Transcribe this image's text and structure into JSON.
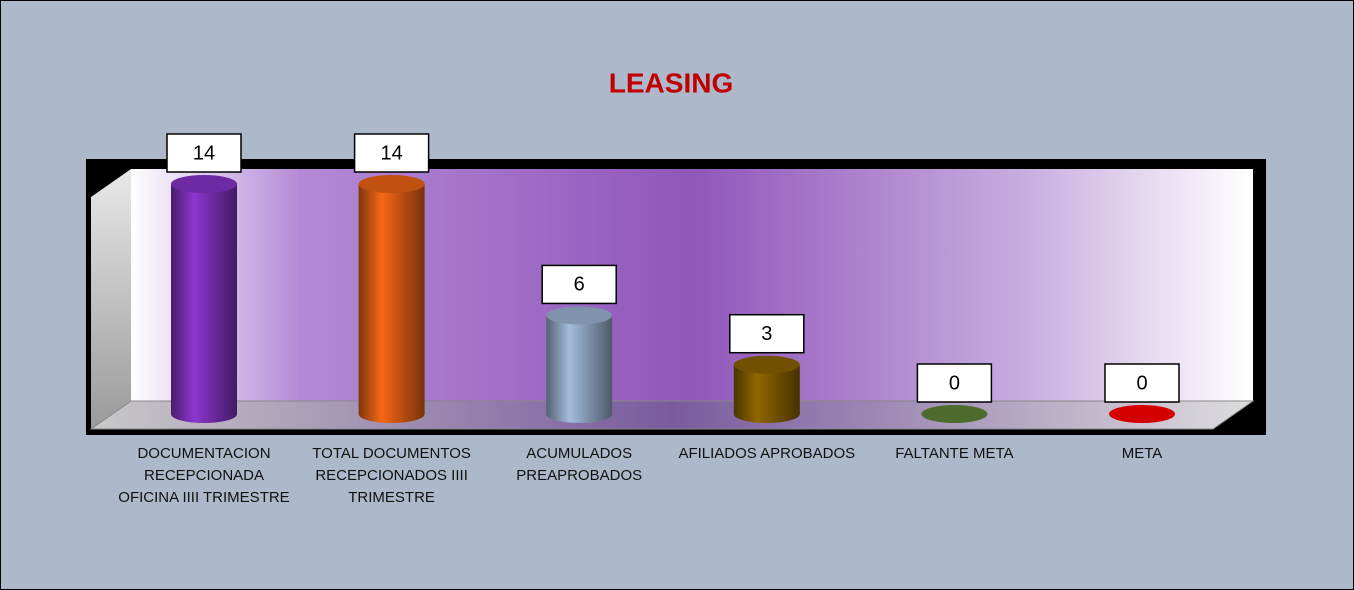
{
  "chart_data": {
    "type": "bar",
    "title": "LEASING",
    "categories": [
      "DOCUMENTACION RECEPCIONADA OFICINA IIII TRIMESTRE",
      "TOTAL DOCUMENTOS RECEPCIONADOS IIII TRIMESTRE",
      "ACUMULADOS PREAPROBADOS",
      "AFILIADOS APROBADOS",
      "FALTANTE META",
      "META"
    ],
    "values": [
      14,
      14,
      6,
      3,
      0,
      0
    ],
    "colors": [
      "#7a2fb5",
      "#d65a12",
      "#8ea3bf",
      "#7d5a00",
      "#4d6b2b",
      "#d40000"
    ]
  }
}
